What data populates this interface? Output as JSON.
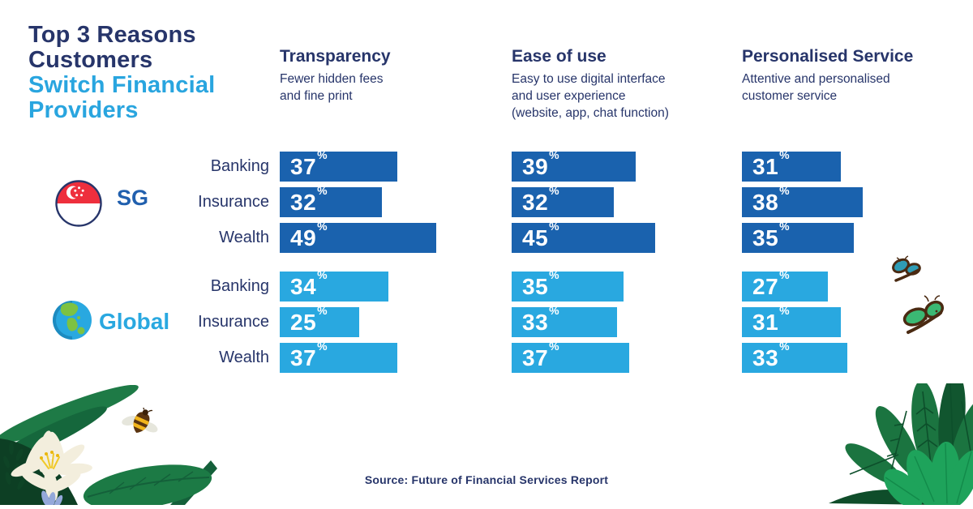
{
  "title": {
    "line1": "Top 3 Reasons",
    "line2": "Customers",
    "line3": "Switch Financial",
    "line4": "Providers"
  },
  "columns": [
    {
      "heading": "Transparency",
      "subtitle": "Fewer hidden fees\nand fine print"
    },
    {
      "heading": "Ease of use",
      "subtitle": "Easy to use digital interface\nand user experience\n(website, app, chat function)"
    },
    {
      "heading": "Personalised Service",
      "subtitle": "Attentive and personalised\ncustomer service"
    }
  ],
  "groups": [
    {
      "label": "SG",
      "icon": "singapore-flag-icon"
    },
    {
      "label": "Global",
      "icon": "globe-icon"
    }
  ],
  "source": "Source: Future of Financial Services Report",
  "colors": {
    "navy_text": "#27356a",
    "accent_blue": "#29a5df",
    "sg_bar": "#1a62ae",
    "global_bar": "#29a8e0",
    "sg_label": "#2160ae",
    "flag_red": "#ee2f3d",
    "leaf_dark": "#14603a",
    "leaf_light": "#1ea35b",
    "bee_yellow": "#f2b51c",
    "butterfly_teal": "#2f9cb5",
    "butterfly_green": "#3bb873"
  },
  "decorative_icons": [
    "singapore-flag-icon",
    "globe-icon",
    "bee-icon",
    "butterfly-teal-icon",
    "butterfly-green-icon",
    "leaves-left",
    "lily-flower-icon",
    "leaves-right"
  ],
  "chart_data": {
    "type": "bar",
    "orientation": "horizontal",
    "unit": "%",
    "row_categories": [
      "Banking",
      "Insurance",
      "Wealth"
    ],
    "column_categories": [
      "Transparency",
      "Ease of use",
      "Personalised Service"
    ],
    "series": [
      {
        "name": "SG",
        "color": "#1a62ae",
        "values": [
          [
            37,
            32,
            49
          ],
          [
            39,
            32,
            45
          ],
          [
            31,
            38,
            35
          ]
        ]
      },
      {
        "name": "Global",
        "color": "#29a8e0",
        "values": [
          [
            34,
            25,
            37
          ],
          [
            35,
            33,
            37
          ],
          [
            27,
            31,
            33
          ]
        ]
      }
    ],
    "xlim": [
      0,
      50
    ],
    "grid": false,
    "value_labels": "inside-left"
  }
}
